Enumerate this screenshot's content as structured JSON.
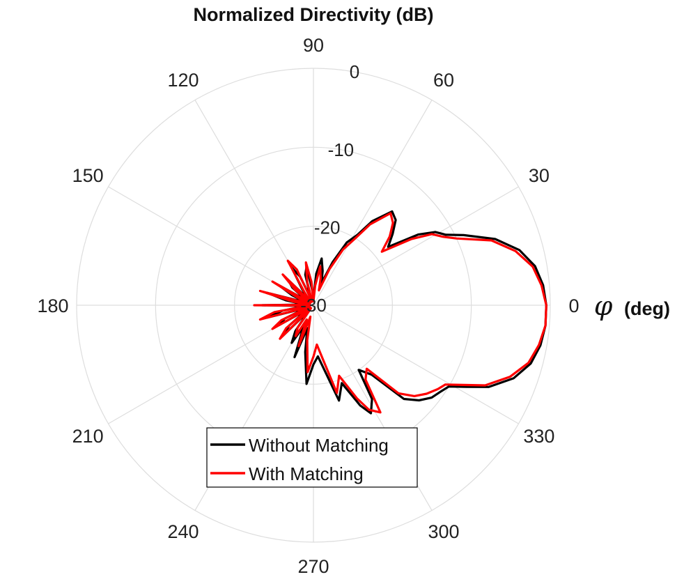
{
  "chart_data": {
    "type": "polar-line",
    "title": "Normalized Directivity (dB)",
    "angle_label_symbol": "φ",
    "angle_label_unit": "(deg)",
    "theta_ticks": [
      0,
      30,
      60,
      90,
      120,
      150,
      180,
      210,
      240,
      270,
      300,
      330
    ],
    "theta_tick_labels": [
      "0",
      "30",
      "60",
      "90",
      "120",
      "150",
      "180",
      "210",
      "240",
      "270",
      "300",
      "330"
    ],
    "r_ticks": [
      -30,
      -20,
      -10,
      0
    ],
    "r_tick_labels": [
      "-30",
      "-20",
      "-10",
      "0"
    ],
    "rlim": [
      -30,
      0
    ],
    "grid": true,
    "legend_position": "bottom-center",
    "series": [
      {
        "name": "Without Matching",
        "color": "#000000",
        "theta_deg": [
          0,
          5,
          10,
          15,
          20,
          25,
          28,
          31,
          34,
          38,
          42,
          46,
          50,
          55,
          58,
          62,
          66,
          70,
          75,
          80,
          85,
          90,
          95,
          100,
          105,
          110,
          115,
          120,
          125,
          130,
          135,
          140,
          145,
          150,
          155,
          160,
          165,
          170,
          175,
          180,
          185,
          190,
          195,
          200,
          205,
          210,
          215,
          220,
          225,
          230,
          235,
          240,
          245,
          250,
          255,
          260,
          265,
          270,
          275,
          280,
          285,
          290,
          295,
          298,
          302,
          305,
          310,
          314,
          318,
          322,
          326,
          329,
          332,
          335,
          340,
          345,
          350,
          355
        ],
        "r_db": [
          -0.5,
          -0.8,
          -1.5,
          -3.0,
          -5.5,
          -9.0,
          -11.0,
          -12.0,
          -14.0,
          -18.0,
          -16.5,
          -15.0,
          -14.5,
          -17.0,
          -19.5,
          -21.0,
          -24.0,
          -27.0,
          -25.5,
          -24.0,
          -26.0,
          -29.0,
          -28.0,
          -25.0,
          -26.0,
          -29.0,
          -26.0,
          -24.5,
          -27.5,
          -29.0,
          -25.5,
          -26.5,
          -29.0,
          -25.0,
          -27.0,
          -29.0,
          -24.0,
          -26.5,
          -29.0,
          -23.5,
          -29.0,
          -26.0,
          -24.0,
          -29.0,
          -26.0,
          -25.0,
          -29.0,
          -26.0,
          -24.5,
          -29.0,
          -26.0,
          -24.5,
          -27.0,
          -23.0,
          -27.0,
          -24.0,
          -20.0,
          -22.5,
          -23.5,
          -21.5,
          -17.5,
          -19.5,
          -16.0,
          -14.5,
          -16.0,
          -20.0,
          -18.5,
          -13.5,
          -12.0,
          -11.0,
          -10.5,
          -10.0,
          -8.0,
          -5.5,
          -3.0,
          -1.5,
          -0.8,
          -0.5
        ]
      },
      {
        "name": "With Matching",
        "color": "#ff0000",
        "theta_deg": [
          0,
          5,
          10,
          15,
          20,
          25,
          28,
          31,
          34,
          38,
          42,
          46,
          50,
          55,
          58,
          62,
          66,
          70,
          75,
          80,
          85,
          90,
          95,
          100,
          105,
          110,
          115,
          120,
          125,
          130,
          135,
          140,
          145,
          150,
          155,
          160,
          165,
          170,
          175,
          180,
          185,
          190,
          195,
          200,
          205,
          210,
          215,
          220,
          225,
          230,
          235,
          240,
          245,
          250,
          255,
          260,
          265,
          270,
          275,
          280,
          285,
          290,
          295,
          298,
          302,
          305,
          310,
          314,
          318,
          322,
          326,
          329,
          332,
          335,
          340,
          345,
          350,
          355
        ],
        "r_db": [
          -0.5,
          -1.0,
          -1.8,
          -3.5,
          -6.0,
          -10.0,
          -11.5,
          -12.5,
          -15.0,
          -19.0,
          -17.0,
          -15.5,
          -14.8,
          -17.5,
          -20.0,
          -22.0,
          -25.0,
          -28.0,
          -26.5,
          -25.0,
          -27.5,
          -29.5,
          -27.0,
          -24.5,
          -27.0,
          -29.5,
          -25.0,
          -23.5,
          -28.0,
          -29.5,
          -24.5,
          -27.0,
          -29.5,
          -24.0,
          -28.0,
          -29.5,
          -23.0,
          -27.5,
          -29.5,
          -22.5,
          -29.5,
          -25.0,
          -23.0,
          -29.5,
          -25.5,
          -24.0,
          -29.5,
          -25.5,
          -24.0,
          -29.5,
          -26.5,
          -25.5,
          -28.0,
          -24.5,
          -28.5,
          -25.5,
          -21.5,
          -23.5,
          -25.0,
          -23.0,
          -18.5,
          -20.5,
          -17.0,
          -15.0,
          -14.0,
          -18.5,
          -19.5,
          -14.5,
          -12.8,
          -11.8,
          -11.0,
          -10.5,
          -8.5,
          -6.0,
          -3.5,
          -1.8,
          -1.0,
          -0.5
        ]
      }
    ]
  }
}
